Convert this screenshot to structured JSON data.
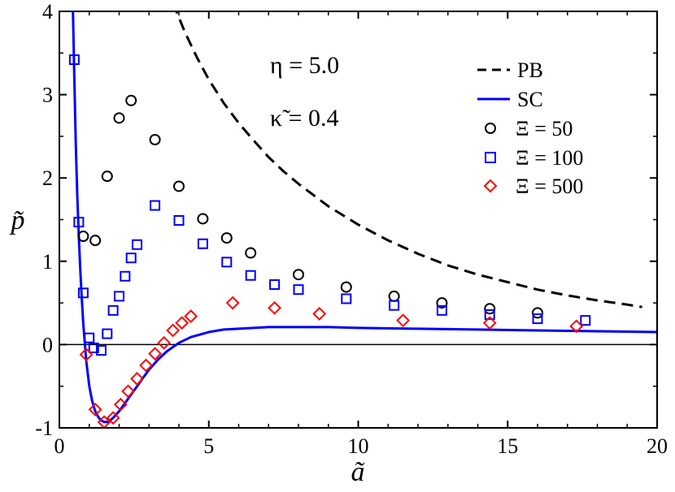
{
  "chart_data": {
    "type": "scatter",
    "xlabel": "ã",
    "ylabel": "p̃",
    "xlim": [
      0,
      20
    ],
    "ylim": [
      -1,
      4
    ],
    "x_ticks": [
      0,
      5,
      10,
      15,
      20
    ],
    "y_ticks": [
      -1,
      0,
      1,
      2,
      3,
      4
    ],
    "x_tick_labels": [
      "0",
      "5",
      "10",
      "15",
      "20"
    ],
    "y_tick_labels": [
      "-1",
      "0",
      "1",
      "2",
      "3",
      "4"
    ],
    "grid": false,
    "reference_line_y": 0,
    "annotations": [
      "η = 5.0",
      "κ̃ = 0.4"
    ],
    "legend_position": "top-right",
    "series": [
      {
        "name": "PB",
        "kind": "line",
        "style": "dashed",
        "color": "#000000",
        "x": [
          3.8,
          4.2,
          4.6,
          5.0,
          5.5,
          6.0,
          6.5,
          7.0,
          7.5,
          8.0,
          9.0,
          10.0,
          11.0,
          12.0,
          13.0,
          14.0,
          15.0,
          16.0,
          17.0,
          18.0,
          19.0,
          19.5
        ],
        "y": [
          4.1,
          3.75,
          3.45,
          3.18,
          2.9,
          2.66,
          2.45,
          2.25,
          2.08,
          1.93,
          1.66,
          1.44,
          1.25,
          1.09,
          0.95,
          0.84,
          0.75,
          0.66,
          0.59,
          0.53,
          0.48,
          0.45
        ]
      },
      {
        "name": "SC",
        "kind": "line",
        "style": "solid",
        "color": "#0000ff",
        "x": [
          0.45,
          0.5,
          0.55,
          0.6,
          0.65,
          0.7,
          0.75,
          0.8,
          0.9,
          1.0,
          1.1,
          1.2,
          1.3,
          1.4,
          1.5,
          1.6,
          1.7,
          1.8,
          2.0,
          2.2,
          2.4,
          2.6,
          2.8,
          3.0,
          3.3,
          3.6,
          4.0,
          4.4,
          5.0,
          5.5,
          6.0,
          7.0,
          8.0,
          9.0,
          10.0,
          12.0,
          14.0,
          16.0,
          18.0,
          20.0
        ],
        "y": [
          4.1,
          3.2,
          2.4,
          1.8,
          1.3,
          0.9,
          0.55,
          0.25,
          -0.2,
          -0.5,
          -0.68,
          -0.8,
          -0.87,
          -0.91,
          -0.93,
          -0.93,
          -0.91,
          -0.88,
          -0.8,
          -0.7,
          -0.6,
          -0.5,
          -0.4,
          -0.3,
          -0.18,
          -0.08,
          0.02,
          0.09,
          0.15,
          0.18,
          0.19,
          0.21,
          0.21,
          0.21,
          0.2,
          0.19,
          0.18,
          0.17,
          0.16,
          0.15
        ]
      },
      {
        "name": "Ξ = 50",
        "kind": "marker",
        "marker": "circle",
        "color": "#000000",
        "x": [
          0.8,
          1.2,
          1.6,
          2.0,
          2.4,
          3.2,
          4.0,
          4.8,
          5.6,
          6.4,
          8.0,
          9.6,
          11.2,
          12.8,
          14.4,
          16.0
        ],
        "y": [
          1.3,
          1.25,
          2.02,
          2.72,
          2.93,
          2.46,
          1.9,
          1.51,
          1.28,
          1.1,
          0.84,
          0.69,
          0.58,
          0.5,
          0.43,
          0.38
        ]
      },
      {
        "name": "Ξ = 100",
        "kind": "marker",
        "marker": "square",
        "color": "#0000ff",
        "x": [
          0.5,
          0.65,
          0.8,
          1.0,
          1.15,
          1.4,
          1.6,
          1.8,
          2.0,
          2.2,
          2.4,
          2.6,
          3.2,
          4.0,
          4.8,
          5.6,
          6.4,
          7.2,
          8.0,
          9.6,
          11.2,
          12.8,
          14.4,
          16.0,
          17.6
        ],
        "y": [
          3.42,
          1.47,
          0.62,
          0.08,
          -0.04,
          -0.07,
          0.13,
          0.41,
          0.58,
          0.82,
          1.04,
          1.2,
          1.67,
          1.49,
          1.21,
          0.99,
          0.83,
          0.72,
          0.66,
          0.55,
          0.47,
          0.41,
          0.36,
          0.31,
          0.29
        ]
      },
      {
        "name": "Ξ = 500",
        "kind": "marker",
        "marker": "diamond",
        "color": "#ff0000",
        "x": [
          0.9,
          1.2,
          1.5,
          1.8,
          2.05,
          2.3,
          2.6,
          2.9,
          3.2,
          3.5,
          3.8,
          4.1,
          4.4,
          5.8,
          7.2,
          8.7,
          11.5,
          14.4,
          17.3
        ],
        "y": [
          -0.12,
          -0.78,
          -0.93,
          -0.88,
          -0.72,
          -0.56,
          -0.41,
          -0.25,
          -0.11,
          0.02,
          0.17,
          0.26,
          0.34,
          0.5,
          0.44,
          0.37,
          0.29,
          0.26,
          0.22
        ]
      }
    ]
  }
}
